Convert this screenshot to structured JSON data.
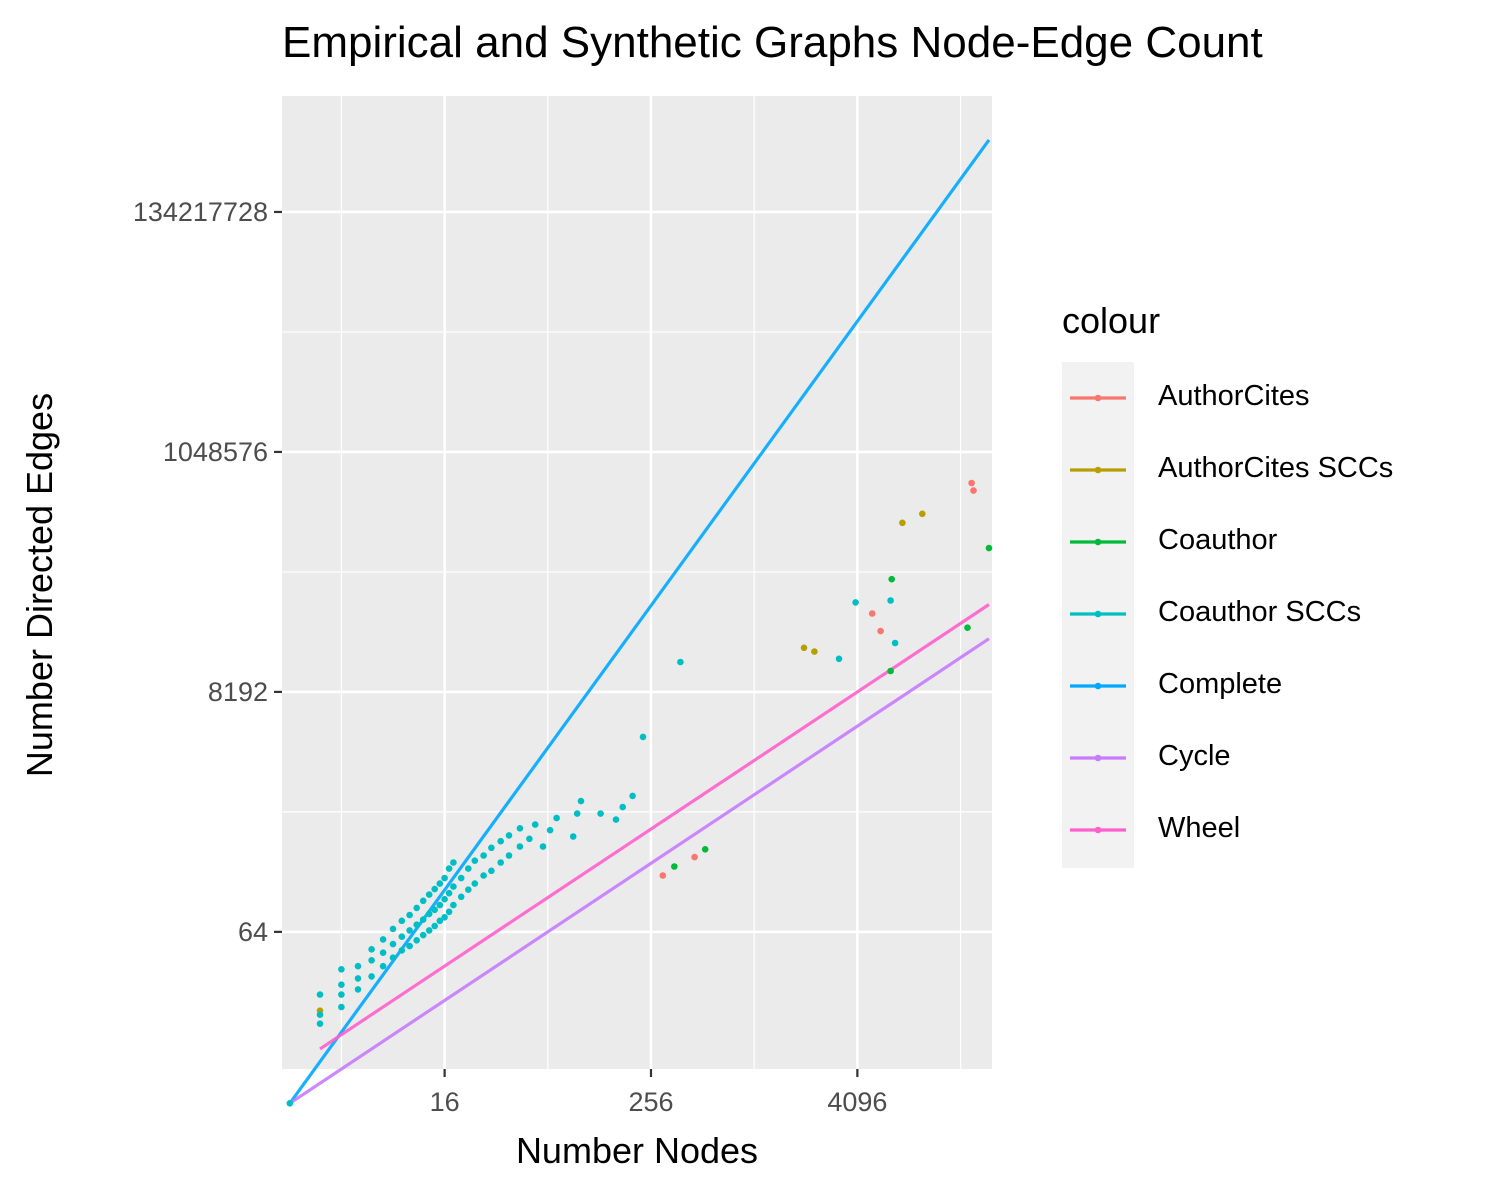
{
  "chart_data": {
    "type": "scatter",
    "title": "Empirical and Synthetic Graphs Node-Edge Count",
    "xlabel": "Number Nodes",
    "ylabel": "Number Directed Edges",
    "x_scale": "log2",
    "y_scale": "log2",
    "xlim": [
      1.8,
      25000
    ],
    "ylim": [
      4,
      1400000000
    ],
    "x_ticks": [
      16,
      256,
      4096
    ],
    "y_ticks": [
      64,
      8192,
      1048576,
      134217728
    ],
    "x_tick_labels": [
      "16",
      "256",
      "4096"
    ],
    "y_tick_labels": [
      "64",
      "8192",
      "1048576",
      "134217728"
    ],
    "grid": true,
    "legend": {
      "title": "colour",
      "position": "right"
    },
    "series": [
      {
        "name": "AuthorCites",
        "color": "#F8766D",
        "type": "scatter",
        "points": [
          [
            300,
            200
          ],
          [
            460,
            290
          ],
          [
            5000,
            40000
          ],
          [
            5600,
            28000
          ],
          [
            19000,
            560000
          ],
          [
            19500,
            480000
          ]
        ]
      },
      {
        "name": "AuthorCites SCCs",
        "color": "#B79F00",
        "type": "scatter",
        "points": [
          [
            3,
            13
          ],
          [
            2000,
            20000
          ],
          [
            2300,
            18500
          ],
          [
            7500,
            250000
          ],
          [
            9800,
            300000
          ]
        ]
      },
      {
        "name": "Coauthor",
        "color": "#00BA38",
        "type": "scatter",
        "points": [
          [
            350,
            240
          ],
          [
            530,
            340
          ],
          [
            6400,
            12500
          ],
          [
            6500,
            80000
          ],
          [
            18000,
            30000
          ],
          [
            24000,
            150000
          ]
        ]
      },
      {
        "name": "Coauthor SCCs",
        "color": "#00BFC4",
        "type": "scatter",
        "points": [
          [
            2,
            2
          ],
          [
            3,
            10
          ],
          [
            3,
            12
          ],
          [
            3,
            18
          ],
          [
            4,
            14
          ],
          [
            4,
            18
          ],
          [
            4,
            22
          ],
          [
            4,
            30
          ],
          [
            5,
            20
          ],
          [
            5,
            25
          ],
          [
            5,
            32
          ],
          [
            6,
            26
          ],
          [
            6,
            36
          ],
          [
            6,
            45
          ],
          [
            7,
            32
          ],
          [
            7,
            42
          ],
          [
            7,
            55
          ],
          [
            8,
            38
          ],
          [
            8,
            50
          ],
          [
            8,
            68
          ],
          [
            9,
            44
          ],
          [
            9,
            58
          ],
          [
            9,
            80
          ],
          [
            10,
            48
          ],
          [
            10,
            66
          ],
          [
            10,
            90
          ],
          [
            11,
            54
          ],
          [
            11,
            74
          ],
          [
            11,
            104
          ],
          [
            12,
            60
          ],
          [
            12,
            82
          ],
          [
            12,
            120
          ],
          [
            13,
            66
          ],
          [
            13,
            92
          ],
          [
            13,
            136
          ],
          [
            14,
            72
          ],
          [
            14,
            100
          ],
          [
            14,
            152
          ],
          [
            15,
            80
          ],
          [
            15,
            110
          ],
          [
            15,
            170
          ],
          [
            16,
            86
          ],
          [
            16,
            124
          ],
          [
            16,
            190
          ],
          [
            17,
            96
          ],
          [
            17,
            140
          ],
          [
            17,
            230
          ],
          [
            18,
            110
          ],
          [
            18,
            160
          ],
          [
            18,
            260
          ],
          [
            20,
            130
          ],
          [
            20,
            190
          ],
          [
            22,
            150
          ],
          [
            22,
            230
          ],
          [
            24,
            170
          ],
          [
            24,
            270
          ],
          [
            27,
            200
          ],
          [
            27,
            300
          ],
          [
            30,
            220
          ],
          [
            30,
            350
          ],
          [
            34,
            260
          ],
          [
            34,
            400
          ],
          [
            38,
            300
          ],
          [
            38,
            450
          ],
          [
            44,
            360
          ],
          [
            44,
            520
          ],
          [
            50,
            420
          ],
          [
            54,
            560
          ],
          [
            60,
            360
          ],
          [
            66,
            500
          ],
          [
            72,
            640
          ],
          [
            90,
            440
          ],
          [
            95,
            700
          ],
          [
            100,
            900
          ],
          [
            130,
            700
          ],
          [
            160,
            620
          ],
          [
            175,
            800
          ],
          [
            200,
            1000
          ],
          [
            230,
            3300
          ],
          [
            380,
            15000
          ],
          [
            3200,
            16000
          ],
          [
            4000,
            50000
          ],
          [
            6400,
            52000
          ],
          [
            6800,
            22000
          ]
        ]
      },
      {
        "name": "Complete",
        "color": "#00A9FF",
        "type": "line",
        "points": [
          [
            2,
            2
          ],
          [
            24000,
            575976000
          ]
        ]
      },
      {
        "name": "Cycle",
        "color": "#C77CFF",
        "type": "line",
        "points": [
          [
            2,
            2
          ],
          [
            24000,
            24000
          ]
        ]
      },
      {
        "name": "Wheel",
        "color": "#FF61CC",
        "type": "line",
        "points": [
          [
            3,
            6
          ],
          [
            24000,
            47998
          ]
        ]
      }
    ]
  }
}
